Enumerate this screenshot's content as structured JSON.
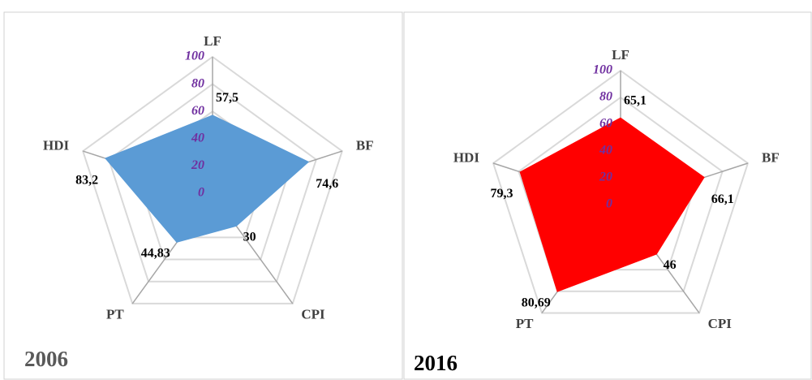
{
  "chart_data": [
    {
      "type": "radar",
      "title": "2006",
      "categories": [
        "LF",
        "BF",
        "CPI",
        "PT",
        "HDI"
      ],
      "values": [
        57.5,
        74.6,
        30,
        44.83,
        83.2
      ],
      "value_labels": [
        "57,5",
        "74,6",
        "30",
        "44,83",
        "83,2"
      ],
      "color": "#5b9bd5",
      "rlim": [
        0,
        100
      ],
      "rticks": [
        0,
        20,
        40,
        60,
        80,
        100
      ],
      "grid": true
    },
    {
      "type": "radar",
      "title": "2016",
      "categories": [
        "LF",
        "BF",
        "CPI",
        "PT",
        "HDI"
      ],
      "values": [
        65.1,
        66.1,
        46,
        80.69,
        79.3
      ],
      "value_labels": [
        "65,1",
        "66,1",
        "46",
        "80,69",
        "79,3"
      ],
      "color": "#ff0000",
      "rlim": [
        0,
        100
      ],
      "rticks": [
        0,
        20,
        40,
        60,
        80,
        100
      ],
      "grid": true
    }
  ]
}
